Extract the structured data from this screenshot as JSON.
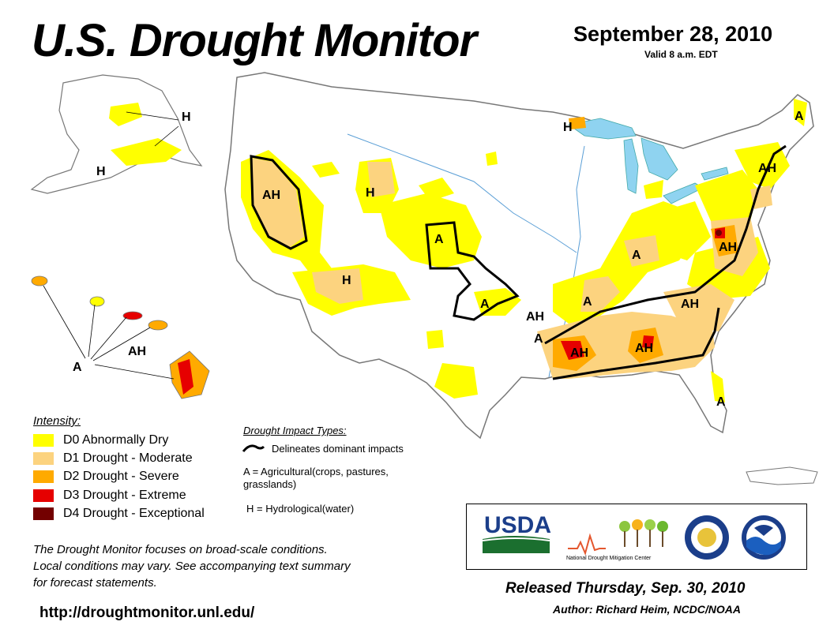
{
  "header": {
    "title": "U.S. Drought Monitor",
    "date": "September 28, 2010",
    "valid": "Valid 8 a.m. EDT"
  },
  "map_labels": {
    "alaska_h1": "H",
    "alaska_h2": "H",
    "hawaii_ah": "AH",
    "hawaii_a": "A",
    "west_ah": "AH",
    "wy_h": "H",
    "sw_h": "H",
    "ne_a": "A",
    "ks_a": "A",
    "south_ah1": "AH",
    "south_a1": "A",
    "south_ah2": "AH",
    "tn_a": "A",
    "oh_a": "A",
    "ga_ah": "AH",
    "carolina_ah": "AH",
    "va_ah": "AH",
    "ne_ah": "AH",
    "maine_a": "A",
    "mi_h": "H",
    "fl_a": "A"
  },
  "legend": {
    "title": "Intensity:",
    "items": [
      {
        "label": "D0 Abnormally Dry",
        "color": "#ffff00"
      },
      {
        "label": "D1 Drought - Moderate",
        "color": "#fcd37f"
      },
      {
        "label": "D2 Drought - Severe",
        "color": "#ffaa00"
      },
      {
        "label": "D3 Drought - Extreme",
        "color": "#e60000"
      },
      {
        "label": "D4 Drought - Exceptional",
        "color": "#730000"
      }
    ]
  },
  "impact": {
    "title": "Drought Impact Types:",
    "line_label": "Delineates dominant impacts",
    "a_label_line1": "A = Agricultural(crops, pastures,",
    "a_label_line2": "grasslands)",
    "h_label": "H = Hydrological(water)"
  },
  "disclaimer": {
    "line1": "The Drought Monitor focuses on broad-scale conditions.",
    "line2": "Local conditions may vary. See accompanying text summary",
    "line3": "for forecast statements."
  },
  "url": "http://droughtmonitor.unl.edu/",
  "logos": {
    "usda": "USDA",
    "ndmc": "National Drought Mitigation Center"
  },
  "footer": {
    "released": "Released Thursday, Sep. 30, 2010",
    "author": "Author: Richard Heim, NCDC/NOAA"
  }
}
